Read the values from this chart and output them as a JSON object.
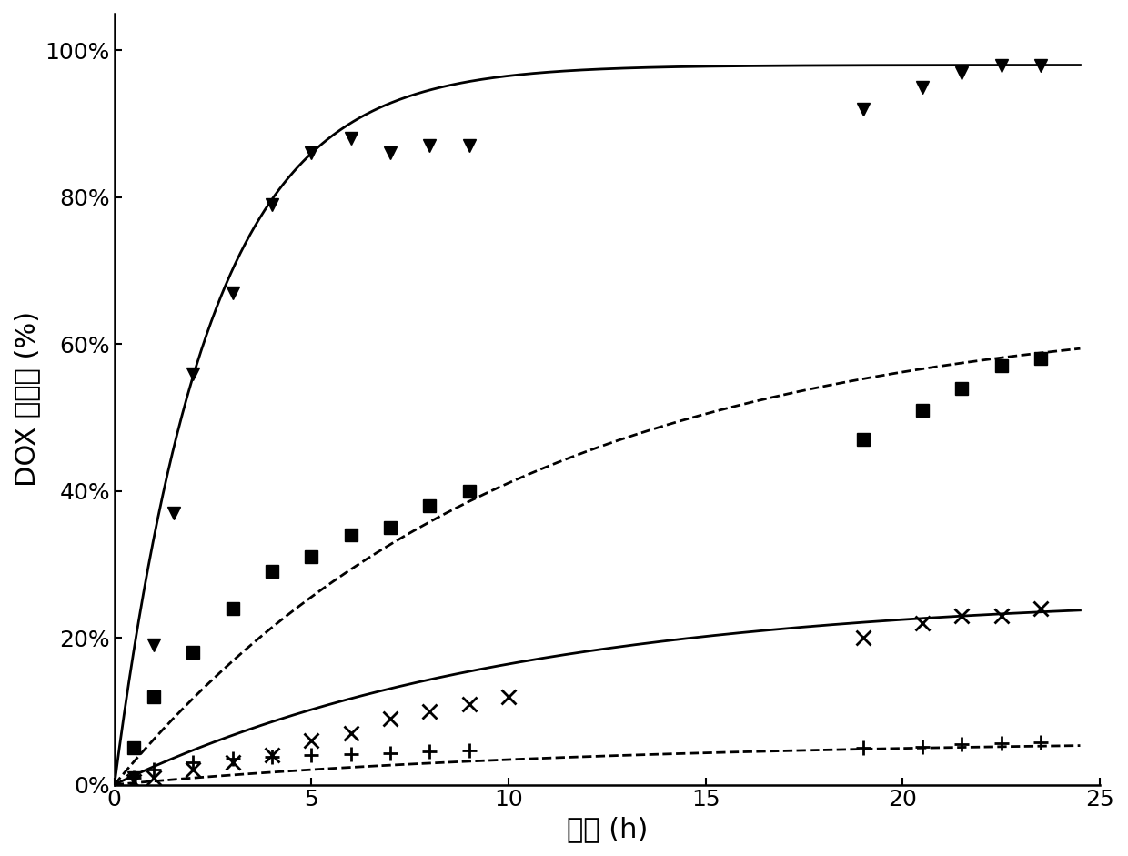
{
  "title": "",
  "xlabel": "时间 (h)",
  "ylabel": "DOX 释放率 (%)",
  "xlim": [
    0,
    25
  ],
  "ylim": [
    0,
    1.05
  ],
  "yticks": [
    0.0,
    0.2,
    0.4,
    0.6,
    0.8,
    1.0
  ],
  "ytick_labels": [
    "0%",
    "20%",
    "40%",
    "60%",
    "80%",
    "100%"
  ],
  "xticks": [
    0,
    5,
    10,
    15,
    20,
    25
  ],
  "series1_x": [
    0.5,
    1.0,
    1.5,
    2.0,
    3.0,
    4.0,
    5.0,
    6.0,
    7.0,
    8.0,
    9.0,
    19.0,
    20.5,
    21.5,
    22.5,
    23.5
  ],
  "series1_y": [
    0.01,
    0.19,
    0.37,
    0.56,
    0.67,
    0.79,
    0.86,
    0.88,
    0.86,
    0.87,
    0.87,
    0.92,
    0.95,
    0.97,
    0.98,
    0.98
  ],
  "series1_marker": "v",
  "series1_linestyle": "-",
  "series1_A": 0.98,
  "series1_k": 0.42,
  "series2_x": [
    0.5,
    1.0,
    2.0,
    3.0,
    4.0,
    5.0,
    6.0,
    7.0,
    8.0,
    9.0,
    19.0,
    20.5,
    21.5,
    22.5,
    23.5
  ],
  "series2_y": [
    0.05,
    0.12,
    0.18,
    0.24,
    0.29,
    0.31,
    0.34,
    0.35,
    0.38,
    0.4,
    0.47,
    0.51,
    0.54,
    0.57,
    0.58
  ],
  "series2_marker": "s",
  "series2_linestyle": "--",
  "series2_A": 0.65,
  "series2_k": 0.1,
  "series3_x": [
    0.5,
    1.0,
    2.0,
    3.0,
    4.0,
    5.0,
    6.0,
    7.0,
    8.0,
    9.0,
    10.0,
    19.0,
    20.5,
    21.5,
    22.5,
    23.5
  ],
  "series3_y": [
    0.005,
    0.01,
    0.02,
    0.03,
    0.04,
    0.06,
    0.07,
    0.09,
    0.1,
    0.11,
    0.12,
    0.2,
    0.22,
    0.23,
    0.23,
    0.24
  ],
  "series3_marker": "x",
  "series3_linestyle": "-",
  "series3_A": 0.26,
  "series3_k": 0.1,
  "series4_x": [
    0.5,
    1.0,
    2.0,
    3.0,
    4.0,
    5.0,
    6.0,
    7.0,
    8.0,
    9.0,
    19.0,
    20.5,
    21.5,
    22.5,
    23.5
  ],
  "series4_y": [
    0.01,
    0.02,
    0.03,
    0.035,
    0.038,
    0.04,
    0.042,
    0.043,
    0.045,
    0.046,
    0.05,
    0.052,
    0.055,
    0.057,
    0.058
  ],
  "series4_marker": "+",
  "series4_linestyle": "--",
  "series4_A": 0.062,
  "series4_k": 0.08,
  "line_color": "#000000",
  "background_color": "#ffffff",
  "marker_size": 10,
  "line_width": 2.0,
  "font_size_axis_label": 22,
  "font_size_ticks": 18
}
